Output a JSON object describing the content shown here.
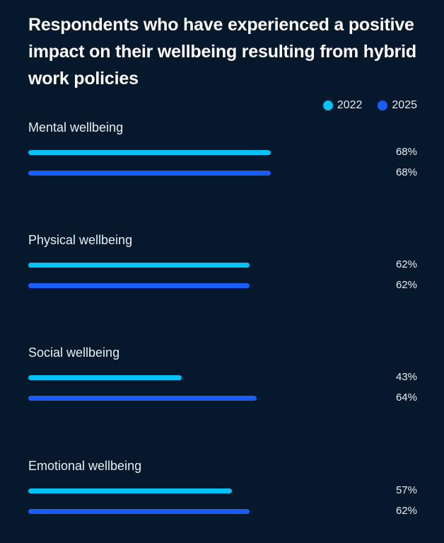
{
  "title": "Respondents who have experienced a positive impact on their wellbeing resulting from hybrid work policies",
  "legend": {
    "series_2022": "2022",
    "series_2025": "2025"
  },
  "colors": {
    "s2022": "#00c2f5",
    "s2025": "#1a5dff",
    "background": "#06182b"
  },
  "chart_data": {
    "type": "bar",
    "orientation": "horizontal",
    "title": "Respondents who have experienced a positive impact on their wellbeing resulting from hybrid work policies",
    "categories": [
      "Mental wellbeing",
      "Physical wellbeing",
      "Social wellbeing",
      "Emotional wellbeing"
    ],
    "series": [
      {
        "name": "2022",
        "values": [
          68,
          62,
          43,
          57
        ]
      },
      {
        "name": "2025",
        "values": [
          68,
          62,
          64,
          62
        ]
      }
    ],
    "value_labels": [
      [
        "68%",
        "68%"
      ],
      [
        "62%",
        "62%"
      ],
      [
        "43%",
        "64%"
      ],
      [
        "57%",
        "62%"
      ]
    ],
    "legend_position": "top-right",
    "xlim": [
      0,
      100
    ]
  }
}
